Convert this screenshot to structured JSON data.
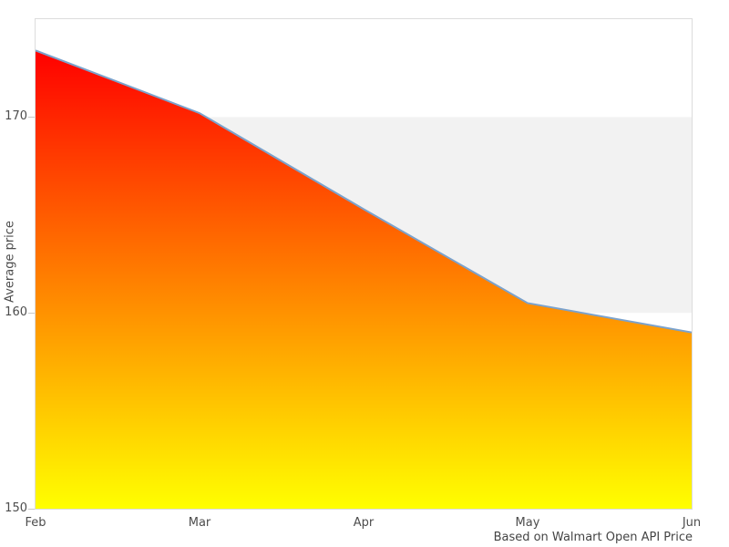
{
  "chart_data": {
    "type": "area",
    "title": "",
    "xlabel": "",
    "ylabel": "Average price",
    "caption": "Based on Walmart Open API Price",
    "categories": [
      "Feb",
      "Mar",
      "Apr",
      "May",
      "Jun"
    ],
    "values": [
      173.4,
      170.2,
      165.3,
      160.5,
      159.0
    ],
    "ylim": [
      150,
      175
    ],
    "yticks": [
      150,
      160,
      170
    ],
    "grid_bands": [
      {
        "from": 160,
        "to": 170,
        "color": "#f2f2f2"
      }
    ],
    "legend_position": "none",
    "line_color": "#7ba2cc",
    "line_width": 2,
    "fill_gradient_top": "#ff0000",
    "fill_gradient_bottom": "#ffff00",
    "plot_border_color": "#dcdcdc",
    "tick_mark_color": "#c8c8c8",
    "text_color": "#4d4d4d"
  }
}
